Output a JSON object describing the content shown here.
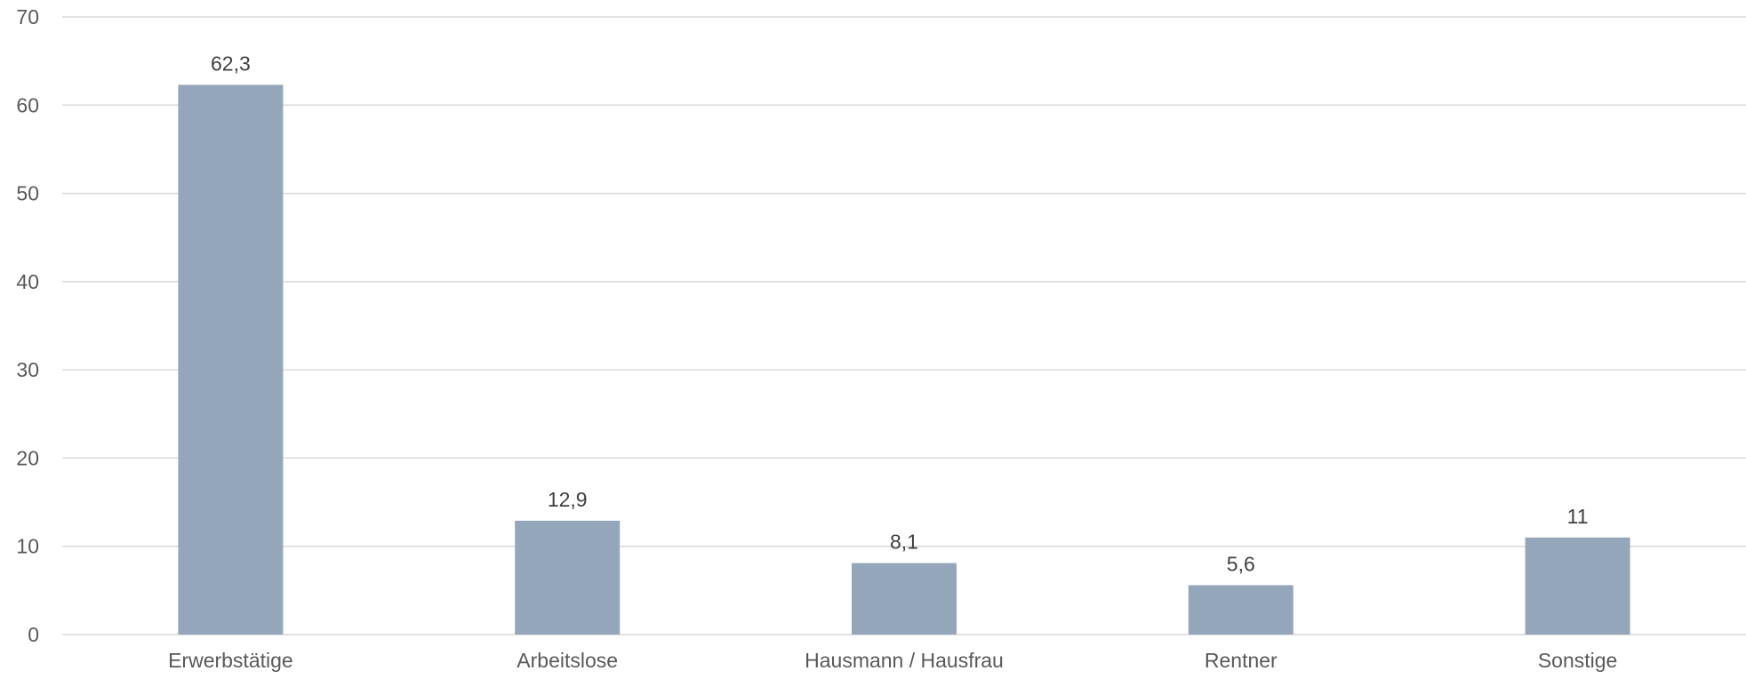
{
  "chart_data": {
    "type": "bar",
    "title": "",
    "xlabel": "",
    "ylabel": "",
    "categories": [
      "Erwerbstätige",
      "Arbeitslose",
      "Hausmann / Hausfrau",
      "Rentner",
      "Sonstige"
    ],
    "values": [
      62.3,
      12.9,
      8.1,
      5.6,
      11
    ],
    "data_labels": [
      "62,3",
      "12,9",
      "8,1",
      "5,6",
      "11"
    ],
    "ylim": [
      0,
      70
    ],
    "yticks": [
      0,
      10,
      20,
      30,
      40,
      50,
      60,
      70
    ],
    "grid": true,
    "legend": "none",
    "bar_color": "#94a7ba"
  }
}
